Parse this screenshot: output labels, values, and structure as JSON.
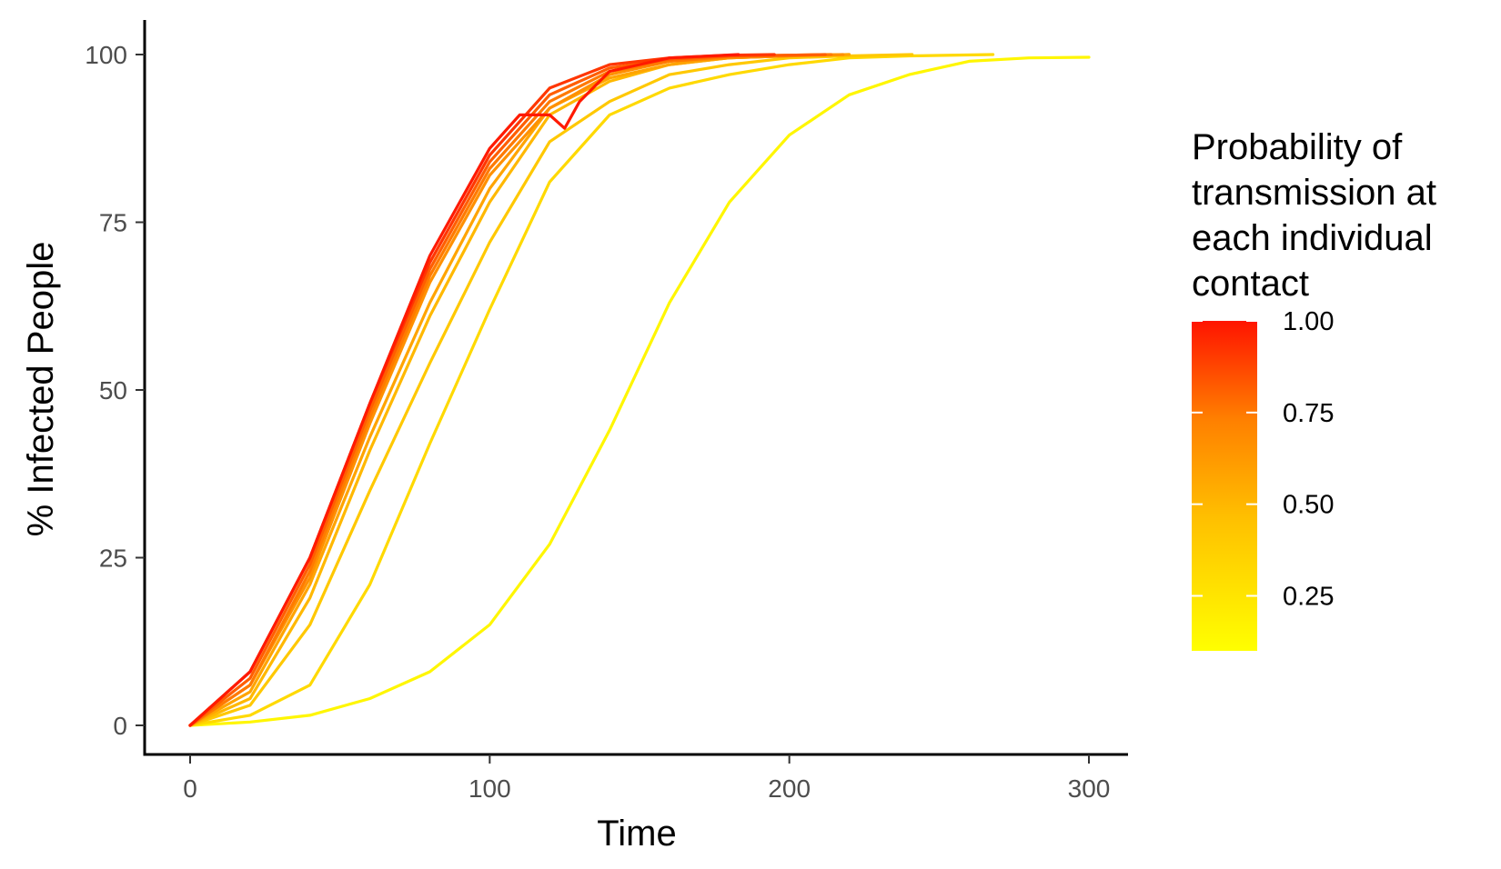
{
  "chart_data": {
    "type": "line",
    "xlabel": "Time",
    "ylabel": "% Infected People",
    "xlim": [
      -15,
      315
    ],
    "ylim": [
      -5,
      105
    ],
    "x_ticks": [
      0,
      100,
      200,
      300
    ],
    "x_tick_labels": [
      "0",
      "100",
      "200",
      "300"
    ],
    "y_ticks": [
      0,
      25,
      50,
      75,
      100
    ],
    "y_tick_labels": [
      "0",
      "25",
      "50",
      "75",
      "100"
    ],
    "grid": false,
    "legend": {
      "title_lines": [
        "Probability of",
        "transmission at",
        "each individual",
        "contact"
      ],
      "position": "right",
      "type": "colorbar",
      "range": [
        0.1,
        1.0
      ],
      "ticks": [
        1.0,
        0.75,
        0.5,
        0.25
      ],
      "tick_labels": [
        "1.00",
        "0.75",
        "0.50",
        "0.25"
      ],
      "low_color": "#FFFF00",
      "high_color": "#FF0000"
    },
    "series": [
      {
        "p": 0.1,
        "color": "#FFF600",
        "x": [
          0,
          20,
          40,
          60,
          80,
          100,
          120,
          140,
          160,
          180,
          200,
          220,
          240,
          260,
          280,
          300
        ],
        "y": [
          0,
          0.5,
          1.5,
          4,
          8,
          15,
          27,
          44,
          63,
          78,
          88,
          94,
          97,
          99,
          99.5,
          99.6
        ]
      },
      {
        "p": 0.2,
        "color": "#FFD900",
        "x": [
          0,
          20,
          40,
          60,
          80,
          100,
          120,
          140,
          160,
          180,
          200,
          220,
          240,
          268
        ],
        "y": [
          0,
          1.5,
          6,
          21,
          42,
          62,
          81,
          91,
          95,
          97,
          98.5,
          99.5,
          99.8,
          100
        ]
      },
      {
        "p": 0.3,
        "color": "#FFC800",
        "x": [
          0,
          20,
          40,
          60,
          80,
          100,
          120,
          140,
          160,
          180,
          200,
          220,
          241
        ],
        "y": [
          0,
          3,
          15,
          35,
          54,
          72,
          87,
          93,
          97,
          98.5,
          99.5,
          99.8,
          100
        ]
      },
      {
        "p": 0.4,
        "color": "#FFB800",
        "x": [
          0,
          20,
          40,
          60,
          80,
          100,
          120,
          140,
          160,
          180,
          200,
          220
        ],
        "y": [
          0,
          4,
          19,
          41,
          61,
          78,
          91,
          96,
          98.5,
          99.5,
          99.8,
          100
        ]
      },
      {
        "p": 0.5,
        "color": "#FFA400",
        "x": [
          0,
          20,
          40,
          60,
          80,
          100,
          120,
          140,
          160,
          180,
          200,
          220
        ],
        "y": [
          0,
          5,
          21,
          43,
          63,
          80,
          92,
          96.5,
          98.5,
          99.5,
          99.8,
          100
        ]
      },
      {
        "p": 0.6,
        "color": "#FF9000",
        "x": [
          0,
          20,
          40,
          60,
          80,
          100,
          120,
          140,
          160,
          180,
          200,
          218
        ],
        "y": [
          0,
          6,
          22,
          45,
          66,
          82,
          92,
          97,
          99,
          99.5,
          99.8,
          100
        ]
      },
      {
        "p": 0.7,
        "color": "#FF7A00",
        "x": [
          0,
          20,
          40,
          60,
          80,
          100,
          120,
          140,
          160,
          180,
          200,
          214
        ],
        "y": [
          0,
          6,
          23,
          46,
          67,
          83,
          93,
          97.5,
          99,
          99.7,
          99.9,
          100
        ]
      },
      {
        "p": 0.8,
        "color": "#FF5E00",
        "x": [
          0,
          20,
          40,
          60,
          80,
          100,
          120,
          140,
          160,
          180,
          200,
          212
        ],
        "y": [
          0,
          7,
          24,
          47,
          68,
          84,
          94,
          98,
          99.3,
          99.8,
          99.9,
          100
        ]
      },
      {
        "p": 0.9,
        "color": "#FF3600",
        "x": [
          0,
          20,
          40,
          60,
          80,
          100,
          120,
          140,
          160,
          180,
          195
        ],
        "y": [
          0,
          8,
          25,
          48,
          69,
          85,
          95,
          98.5,
          99.5,
          99.9,
          100
        ]
      },
      {
        "p": 1.0,
        "color": "#FF1A00",
        "x": [
          0,
          20,
          40,
          60,
          80,
          100,
          110,
          120,
          125,
          130,
          140,
          160,
          183
        ],
        "y": [
          0,
          8,
          25,
          48,
          70,
          86,
          91,
          91,
          89,
          93,
          97.5,
          99.5,
          100
        ]
      }
    ]
  }
}
